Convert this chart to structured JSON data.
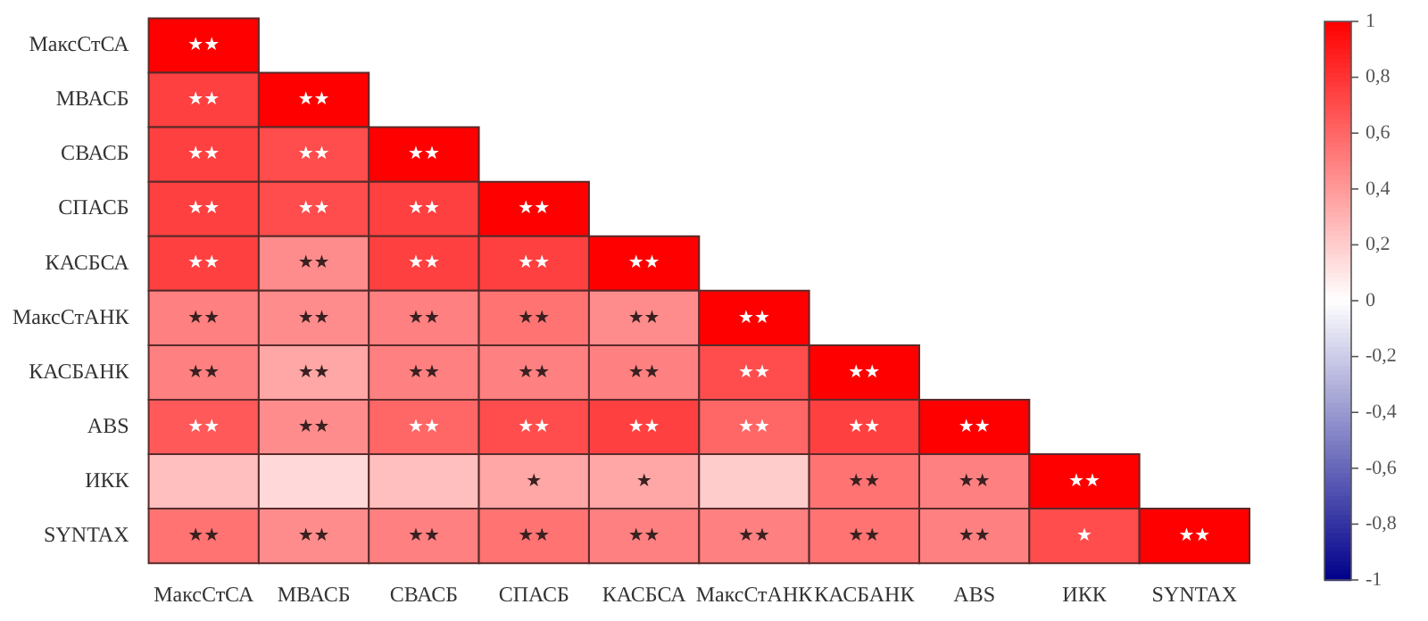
{
  "chart_data": {
    "type": "heatmap",
    "categories": [
      "МаксСтСА",
      "МВАСБ",
      "СВАСБ",
      "СПАСБ",
      "КАСБСА",
      "МаксСтАНК",
      "КАСБАНК",
      "ABS",
      "ИКК",
      "SYNTAX"
    ],
    "y_categories": [
      "МаксСтСА",
      "МВАСБ",
      "СВАСБ",
      "СПАСБ",
      "КАСБСА",
      "МаксСтАНК",
      "КАСБАНК",
      "ABS",
      "ИКК",
      "SYNTAX"
    ],
    "cells": [
      [
        1,
        null,
        null,
        null,
        null,
        null,
        null,
        null,
        null,
        null
      ],
      [
        0.75,
        1,
        null,
        null,
        null,
        null,
        null,
        null,
        null,
        null
      ],
      [
        0.75,
        0.7,
        1,
        null,
        null,
        null,
        null,
        null,
        null,
        null
      ],
      [
        0.75,
        0.7,
        0.75,
        1,
        null,
        null,
        null,
        null,
        null,
        null
      ],
      [
        0.75,
        0.45,
        0.75,
        0.75,
        1,
        null,
        null,
        null,
        null,
        null
      ],
      [
        0.5,
        0.45,
        0.5,
        0.55,
        0.45,
        1,
        null,
        null,
        null,
        null
      ],
      [
        0.5,
        0.35,
        0.5,
        0.5,
        0.5,
        0.7,
        1,
        null,
        null,
        null
      ],
      [
        0.65,
        0.45,
        0.6,
        0.7,
        0.75,
        0.6,
        0.75,
        1,
        null,
        null
      ],
      [
        0.25,
        0.15,
        0.25,
        0.35,
        0.35,
        0.2,
        0.55,
        0.5,
        1,
        null
      ],
      [
        0.55,
        0.45,
        0.5,
        0.55,
        0.5,
        0.5,
        0.55,
        0.5,
        0.7,
        1
      ]
    ],
    "cell_labels": [
      [
        "★★",
        null,
        null,
        null,
        null,
        null,
        null,
        null,
        null,
        null
      ],
      [
        "★★",
        "★★",
        null,
        null,
        null,
        null,
        null,
        null,
        null,
        null
      ],
      [
        "★★",
        "★★",
        "★★",
        null,
        null,
        null,
        null,
        null,
        null,
        null
      ],
      [
        "★★",
        "★★",
        "★★",
        "★★",
        null,
        null,
        null,
        null,
        null,
        null
      ],
      [
        "★★",
        "★★",
        "★★",
        "★★",
        "★★",
        null,
        null,
        null,
        null,
        null
      ],
      [
        "★★",
        "★★",
        "★★",
        "★★",
        "★★",
        "★★",
        null,
        null,
        null,
        null
      ],
      [
        "★★",
        "★★",
        "★★",
        "★★",
        "★★",
        "★★",
        "★★",
        null,
        null,
        null
      ],
      [
        "★★",
        "★★",
        "★★",
        "★★",
        "★★",
        "★★",
        "★★",
        "★★",
        null,
        null
      ],
      [
        null,
        null,
        null,
        "★",
        "★",
        null,
        "★★",
        "★★",
        "★★",
        null
      ],
      [
        "★★",
        "★★",
        "★★",
        "★★",
        "★★",
        "★★",
        "★★",
        "★★",
        "★",
        "★★"
      ]
    ],
    "clim": [
      -1,
      1
    ],
    "cticks": [
      {
        "value": -1,
        "label": "-1"
      },
      {
        "value": -0.8,
        "label": "-0,8"
      },
      {
        "value": -0.6,
        "label": "-0,6"
      },
      {
        "value": -0.4,
        "label": "-0,4"
      },
      {
        "value": -0.2,
        "label": "-0,2"
      },
      {
        "value": 0,
        "label": "0"
      },
      {
        "value": 0.2,
        "label": "0,2"
      },
      {
        "value": 0.4,
        "label": "0,4"
      },
      {
        "value": 0.6,
        "label": "0,6"
      },
      {
        "value": 0.8,
        "label": "0,8"
      },
      {
        "value": 1,
        "label": "1"
      }
    ]
  }
}
